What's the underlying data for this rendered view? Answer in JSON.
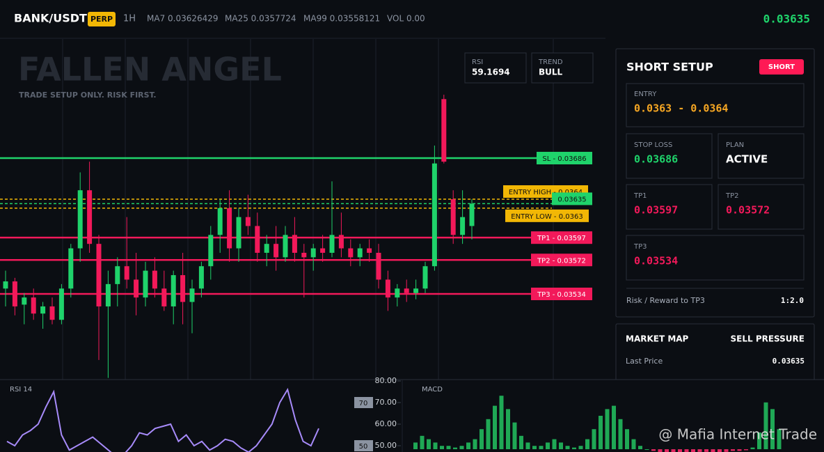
{
  "header": {
    "symbol": "BANK/USDT",
    "badge": "PERP",
    "interval": "1H",
    "ma7": "MA7 0.03626429",
    "ma25": "MA25 0.0357724",
    "ma99": "MA99 0.03558121",
    "volume": "VOL 0.00",
    "price": "0.03635"
  },
  "watermark": {
    "title": "FALLEN ANGEL",
    "subtitle": "TRADE SETUP ONLY. RISK FIRST."
  },
  "stats": {
    "rsi_label": "RSI",
    "rsi_value": "59.1694",
    "trend_label": "TREND",
    "trend_value": "BULL"
  },
  "chart": {
    "up_color": "#1fd36b",
    "down_color": "#f2195a",
    "levels": [
      {
        "label": "SL - 0.03686",
        "value": 0.03686,
        "color": "#1fd36b",
        "line_style": "solid"
      },
      {
        "label": "ENTRY HIGH - 0.0364",
        "value": 0.0364,
        "color": "#f2b705",
        "line_style": "dashed"
      },
      {
        "label": "0.03635",
        "value": 0.03635,
        "color": "#1fd36b",
        "line_style": "dashed"
      },
      {
        "label": "ENTRY LOW - 0.0363",
        "value": 0.0363,
        "color": "#f2b705",
        "line_style": "dashed"
      },
      {
        "label": "TP1 - 0.03597",
        "value": 0.03597,
        "color": "#f2195a",
        "line_style": "solid"
      },
      {
        "label": "TP2 - 0.03572",
        "value": 0.03572,
        "color": "#f2195a",
        "line_style": "solid"
      },
      {
        "label": "TP3 - 0.03534",
        "value": 0.03534,
        "color": "#f2195a",
        "line_style": "solid"
      }
    ],
    "candles": [
      [
        0.0354,
        0.0356,
        0.0352,
        0.03548
      ],
      [
        0.03548,
        0.03552,
        0.0351,
        0.0352
      ],
      [
        0.03522,
        0.03535,
        0.035,
        0.0353
      ],
      [
        0.0353,
        0.0354,
        0.03505,
        0.03512
      ],
      [
        0.03512,
        0.03525,
        0.03495,
        0.0352
      ],
      [
        0.0352,
        0.0353,
        0.035,
        0.03505
      ],
      [
        0.03505,
        0.03545,
        0.035,
        0.0354
      ],
      [
        0.0354,
        0.0359,
        0.0353,
        0.03585
      ],
      [
        0.03585,
        0.0367,
        0.0357,
        0.0365
      ],
      [
        0.0365,
        0.03682,
        0.0358,
        0.0359
      ],
      [
        0.0359,
        0.036,
        0.0346,
        0.0352
      ],
      [
        0.0352,
        0.0356,
        0.0344,
        0.03545
      ],
      [
        0.03545,
        0.03575,
        0.0352,
        0.03565
      ],
      [
        0.03565,
        0.0362,
        0.0354,
        0.0355
      ],
      [
        0.0355,
        0.0358,
        0.0351,
        0.0353
      ],
      [
        0.0353,
        0.0357,
        0.0352,
        0.0356
      ],
      [
        0.0356,
        0.03575,
        0.0353,
        0.0354
      ],
      [
        0.0354,
        0.0356,
        0.03515,
        0.0352
      ],
      [
        0.0352,
        0.0356,
        0.035,
        0.03555
      ],
      [
        0.03555,
        0.0358,
        0.035,
        0.03525
      ],
      [
        0.03525,
        0.0355,
        0.0349,
        0.0354
      ],
      [
        0.0354,
        0.0357,
        0.0353,
        0.03565
      ],
      [
        0.03565,
        0.0361,
        0.0355,
        0.036
      ],
      [
        0.036,
        0.0364,
        0.0358,
        0.0363
      ],
      [
        0.0363,
        0.0365,
        0.0357,
        0.03585
      ],
      [
        0.03585,
        0.0363,
        0.0357,
        0.0362
      ],
      [
        0.0362,
        0.03645,
        0.036,
        0.0361
      ],
      [
        0.0361,
        0.03625,
        0.0357,
        0.0358
      ],
      [
        0.0358,
        0.036,
        0.03565,
        0.0359
      ],
      [
        0.0359,
        0.0361,
        0.0356,
        0.03575
      ],
      [
        0.03575,
        0.0361,
        0.0357,
        0.036
      ],
      [
        0.036,
        0.0362,
        0.0357,
        0.0358
      ],
      [
        0.0358,
        0.0359,
        0.0353,
        0.03575
      ],
      [
        0.03575,
        0.0359,
        0.0356,
        0.03585
      ],
      [
        0.03585,
        0.036,
        0.0357,
        0.0358
      ],
      [
        0.0358,
        0.0366,
        0.03575,
        0.036
      ],
      [
        0.036,
        0.03625,
        0.03575,
        0.03585
      ],
      [
        0.03585,
        0.03595,
        0.03565,
        0.03575
      ],
      [
        0.03575,
        0.0359,
        0.03565,
        0.03585
      ],
      [
        0.03585,
        0.03595,
        0.0357,
        0.0358
      ],
      [
        0.0358,
        0.0359,
        0.0354,
        0.0355
      ],
      [
        0.0355,
        0.0356,
        0.03515,
        0.0353
      ],
      [
        0.0353,
        0.03545,
        0.0352,
        0.0354
      ],
      [
        0.0354,
        0.0355,
        0.03525,
        0.03535
      ],
      [
        0.03535,
        0.0355,
        0.03528,
        0.0354
      ],
      [
        0.0354,
        0.0357,
        0.03535,
        0.03565
      ],
      [
        0.03565,
        0.037,
        0.0356,
        0.0368
      ],
      [
        0.03752,
        0.03757,
        0.0368,
        0.03682
      ],
      [
        0.0364,
        0.0365,
        0.0359,
        0.036
      ],
      [
        0.036,
        0.0365,
        0.0359,
        0.0362
      ],
      [
        0.0361,
        0.0364,
        0.03595,
        0.03635
      ]
    ]
  },
  "setup": {
    "title": "SHORT SETUP",
    "badge": "SHORT",
    "entry_label": "ENTRY",
    "entry_value": "0.0363 - 0.0364",
    "sl_label": "STOP LOSS",
    "sl_value": "0.03686",
    "plan_label": "PLAN",
    "plan_value": "ACTIVE",
    "tp1_label": "TP1",
    "tp1_value": "0.03597",
    "tp2_label": "TP2",
    "tp2_value": "0.03572",
    "tp3_label": "TP3",
    "tp3_value": "0.03534",
    "rr_label": "Risk / Reward to TP3",
    "rr_value": "1:2.0"
  },
  "market_map": {
    "title": "MARKET MAP",
    "status": "SELL PRESSURE",
    "last_price_label": "Last Price",
    "last_price": "0.03635"
  },
  "rsi_panel": {
    "title": "RSI 14",
    "color": "#a78bfa",
    "yticks": [
      {
        "value": 80,
        "label": "80.00"
      },
      {
        "value": 70,
        "label": "70.00"
      },
      {
        "value": 60,
        "label": "60.00"
      },
      {
        "value": 50,
        "label": "50.00"
      }
    ],
    "levels": [
      70,
      50
    ],
    "values": [
      52,
      50,
      55,
      57,
      60,
      68,
      75,
      55,
      48,
      50,
      52,
      54,
      51,
      48,
      45,
      46,
      50,
      56,
      55,
      58,
      59,
      60,
      52,
      55,
      50,
      52,
      48,
      50,
      53,
      52,
      49,
      47,
      50,
      55,
      60,
      70,
      76,
      62,
      52,
      50,
      58
    ]
  },
  "macd_panel": {
    "title": "MACD",
    "up_color": "#1fa855",
    "down_color": "#e0245e",
    "values": [
      2,
      4,
      3,
      2,
      1,
      1,
      0.5,
      1,
      2,
      3,
      6,
      9,
      13,
      16,
      12,
      8,
      4,
      2,
      1,
      1,
      2,
      3,
      2,
      1,
      0.5,
      1,
      3,
      6,
      10,
      12,
      13,
      9,
      6,
      3,
      1,
      0,
      -0.5,
      -1,
      -1,
      -1.2,
      -1,
      -1,
      -1,
      -0.8,
      -0.8,
      -1,
      -1,
      -0.8,
      -0.5,
      -0.5,
      -0.3,
      0.5,
      5,
      14,
      12,
      6
    ]
  },
  "credit": "@ Mafia Internet Trade"
}
